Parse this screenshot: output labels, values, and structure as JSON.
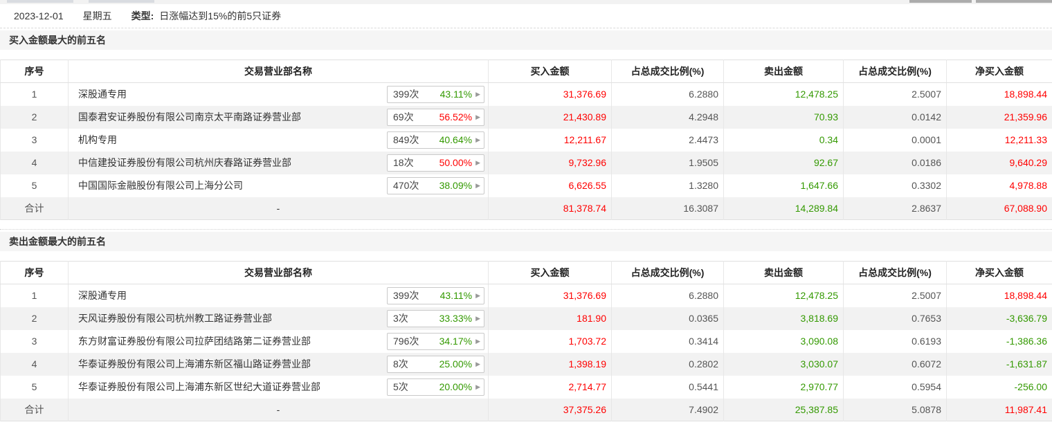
{
  "date_bar": {
    "date": "2023-12-01",
    "weekday": "星期五",
    "type_label": "类型:",
    "type_value": "日涨幅达到15%的前5只证券"
  },
  "columns": [
    "序号",
    "交易营业部名称",
    "买入金额",
    "占总成交比例(%)",
    "卖出金额",
    "占总成交比例(%)",
    "净买入金额"
  ],
  "colors": {
    "red": "#ff0000",
    "green": "#339900",
    "gray": "#555555"
  },
  "sections": [
    {
      "title": "买入金额最大的前五名",
      "rows": [
        {
          "no": "1",
          "name": "深股通专用",
          "count": "399次",
          "pct": "43.11%",
          "pct_color": "green",
          "buy": "31,376.69",
          "buy_ratio": "6.2880",
          "sell": "12,478.25",
          "sell_ratio": "2.5007",
          "net": "18,898.44",
          "net_color": "red"
        },
        {
          "no": "2",
          "name": "国泰君安证券股份有限公司南京太平南路证券营业部",
          "count": "69次",
          "pct": "56.52%",
          "pct_color": "red",
          "buy": "21,430.89",
          "buy_ratio": "4.2948",
          "sell": "70.93",
          "sell_ratio": "0.0142",
          "net": "21,359.96",
          "net_color": "red"
        },
        {
          "no": "3",
          "name": "机构专用",
          "count": "849次",
          "pct": "40.64%",
          "pct_color": "green",
          "buy": "12,211.67",
          "buy_ratio": "2.4473",
          "sell": "0.34",
          "sell_ratio": "0.0001",
          "net": "12,211.33",
          "net_color": "red"
        },
        {
          "no": "4",
          "name": "中信建投证券股份有限公司杭州庆春路证券营业部",
          "count": "18次",
          "pct": "50.00%",
          "pct_color": "red",
          "buy": "9,732.96",
          "buy_ratio": "1.9505",
          "sell": "92.67",
          "sell_ratio": "0.0186",
          "net": "9,640.29",
          "net_color": "red"
        },
        {
          "no": "5",
          "name": "中国国际金融股份有限公司上海分公司",
          "count": "470次",
          "pct": "38.09%",
          "pct_color": "green",
          "buy": "6,626.55",
          "buy_ratio": "1.3280",
          "sell": "1,647.66",
          "sell_ratio": "0.3302",
          "net": "4,978.88",
          "net_color": "red"
        }
      ],
      "total": {
        "no": "合计",
        "name": "-",
        "buy": "81,378.74",
        "buy_ratio": "16.3087",
        "sell": "14,289.84",
        "sell_ratio": "2.8637",
        "net": "67,088.90",
        "net_color": "red"
      }
    },
    {
      "title": "卖出金额最大的前五名",
      "rows": [
        {
          "no": "1",
          "name": "深股通专用",
          "count": "399次",
          "pct": "43.11%",
          "pct_color": "green",
          "buy": "31,376.69",
          "buy_ratio": "6.2880",
          "sell": "12,478.25",
          "sell_ratio": "2.5007",
          "net": "18,898.44",
          "net_color": "red"
        },
        {
          "no": "2",
          "name": "天风证券股份有限公司杭州教工路证券营业部",
          "count": "3次",
          "pct": "33.33%",
          "pct_color": "green",
          "buy": "181.90",
          "buy_ratio": "0.0365",
          "sell": "3,818.69",
          "sell_ratio": "0.7653",
          "net": "-3,636.79",
          "net_color": "green"
        },
        {
          "no": "3",
          "name": "东方财富证券股份有限公司拉萨团结路第二证券营业部",
          "count": "796次",
          "pct": "34.17%",
          "pct_color": "green",
          "buy": "1,703.72",
          "buy_ratio": "0.3414",
          "sell": "3,090.08",
          "sell_ratio": "0.6193",
          "net": "-1,386.36",
          "net_color": "green"
        },
        {
          "no": "4",
          "name": "华泰证券股份有限公司上海浦东新区福山路证券营业部",
          "count": "8次",
          "pct": "25.00%",
          "pct_color": "green",
          "buy": "1,398.19",
          "buy_ratio": "0.2802",
          "sell": "3,030.07",
          "sell_ratio": "0.6072",
          "net": "-1,631.87",
          "net_color": "green"
        },
        {
          "no": "5",
          "name": "华泰证券股份有限公司上海浦东新区世纪大道证券营业部",
          "count": "5次",
          "pct": "20.00%",
          "pct_color": "green",
          "buy": "2,714.77",
          "buy_ratio": "0.5441",
          "sell": "2,970.77",
          "sell_ratio": "0.5954",
          "net": "-256.00",
          "net_color": "green"
        }
      ],
      "total": {
        "no": "合计",
        "name": "-",
        "buy": "37,375.26",
        "buy_ratio": "7.4902",
        "sell": "25,387.85",
        "sell_ratio": "5.0878",
        "net": "11,987.41",
        "net_color": "red"
      }
    }
  ]
}
